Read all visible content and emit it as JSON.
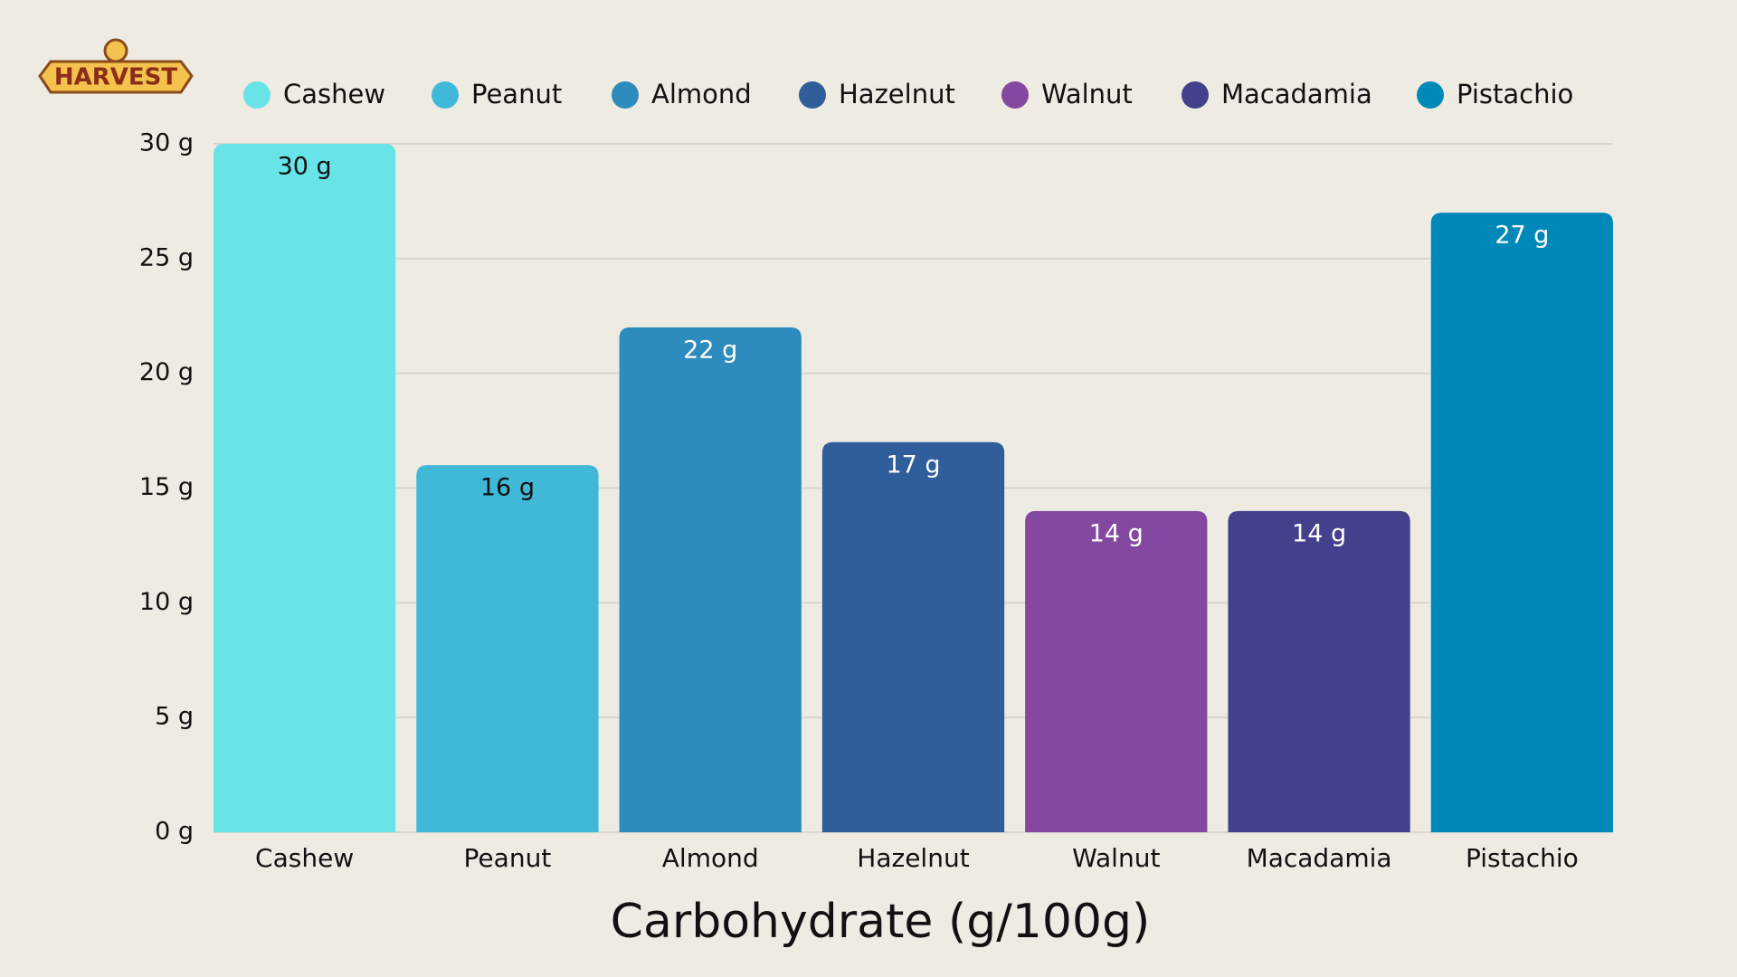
{
  "logo": "HARVEST",
  "chart_data": {
    "type": "bar",
    "title": "Carbohydrate (g/100g)",
    "categories": [
      "Cashew",
      "Peanut",
      "Almond",
      "Hazelnut",
      "Walnut",
      "Macadamia",
      "Pistachio"
    ],
    "values": [
      30,
      16,
      22,
      17,
      14,
      14,
      27
    ],
    "value_labels": [
      "30 g",
      "16 g",
      "22 g",
      "17 g",
      "14 g",
      "14 g",
      "27 g"
    ],
    "colors": [
      "#68e3e8",
      "#40b8d8",
      "#2e8bbd",
      "#2f5e9a",
      "#8548a0",
      "#43418c",
      "#0088b8"
    ],
    "label_colors": [
      "#111111",
      "#111111",
      "#ffffff",
      "#ffffff",
      "#ffffff",
      "#ffffff",
      "#ffffff"
    ],
    "ylim": [
      0,
      30
    ],
    "yticks": [
      {
        "value": 0,
        "label": "0 g"
      },
      {
        "value": 5,
        "label": "5 g"
      },
      {
        "value": 10,
        "label": "10 g"
      },
      {
        "value": 15,
        "label": "15 g"
      },
      {
        "value": 20,
        "label": "20 g"
      },
      {
        "value": 25,
        "label": "25 g"
      },
      {
        "value": 30,
        "label": "30 g"
      }
    ],
    "grid": true,
    "legend": "top"
  }
}
